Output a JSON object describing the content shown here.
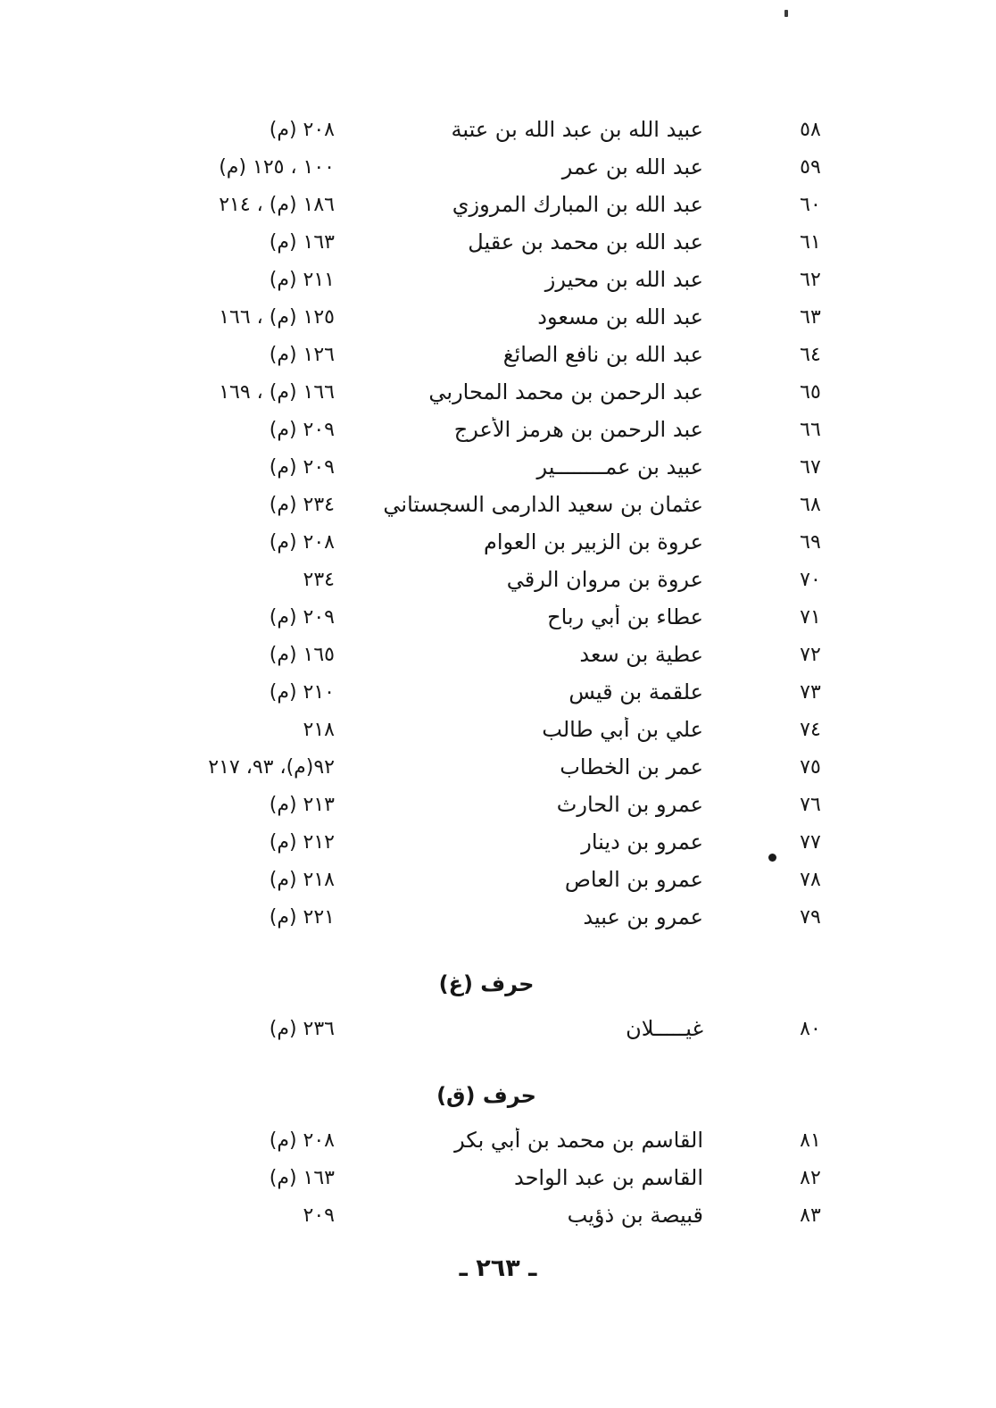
{
  "page": {
    "footer": "ـ ٢٦٣ ـ",
    "colors": {
      "ink": "#161616",
      "paper": "#ffffff"
    }
  },
  "index": {
    "sections": [
      {
        "rows": [
          {
            "num": "٥٨",
            "name": "عبيد الله بن عبد الله بن عتبة",
            "pages": "٢٠٨ (م)"
          },
          {
            "num": "٥٩",
            "name": "عبد الله بن عمر",
            "pages": "١٠٠ ، ١٢٥ (م)"
          },
          {
            "num": "٦٠",
            "name": "عبد الله بن المبارك المروزي",
            "pages": "١٨٦ (م) ، ٢١٤"
          },
          {
            "num": "٦١",
            "name": "عبد الله بن محمد بن عقيل",
            "pages": "١٦٣ (م)"
          },
          {
            "num": "٦٢",
            "name": "عبد الله بن محيرز",
            "pages": "٢١١ (م)"
          },
          {
            "num": "٦٣",
            "name": "عبد الله بن مسعود",
            "pages": "١٢٥ (م) ، ١٦٦"
          },
          {
            "num": "٦٤",
            "name": "عبد الله بن نافع الصائغ",
            "pages": "١٢٦ (م)"
          },
          {
            "num": "٦٥",
            "name": "عبد الرحمن بن محمد المحاربي",
            "pages": "١٦٦ (م) ، ١٦٩"
          },
          {
            "num": "٦٦",
            "name": "عبد الرحمن بن هرمز الأعرج",
            "pages": "٢٠٩ (م)"
          },
          {
            "num": "٦٧",
            "name": "عبيد بن عمــــــــير",
            "pages": "٢٠٩ (م)"
          },
          {
            "num": "٦٨",
            "name": "عثمان بن سعيد الدارمى السجستاني",
            "pages": "٢٣٤ (م)"
          },
          {
            "num": "٦٩",
            "name": "عروة بن الزبير بن العوام",
            "pages": "٢٠٨ (م)"
          },
          {
            "num": "٧٠",
            "name": "عروة بن مروان الرقي",
            "pages": "٢٣٤"
          },
          {
            "num": "٧١",
            "name": "عطاء بن أبي رباح",
            "pages": "٢٠٩ (م)"
          },
          {
            "num": "٧٢",
            "name": "عطية بن سعد",
            "pages": "١٦٥ (م)"
          },
          {
            "num": "٧٣",
            "name": "علقمة بن قيس",
            "pages": "٢١٠ (م)"
          },
          {
            "num": "٧٤",
            "name": "علي بن أبي طالب",
            "pages": "٢١٨"
          },
          {
            "num": "٧٥",
            "name": "عمر بن الخطاب",
            "pages": "٩٢(م)، ٩٣، ٢١٧"
          },
          {
            "num": "٧٦",
            "name": "عمرو بن الحارث",
            "pages": "٢١٣ (م)"
          },
          {
            "num": "٧٧",
            "name": "عمرو بن دينار",
            "pages": "٢١٢ (م)"
          },
          {
            "num": "٧٨",
            "name": "عمرو بن العاص",
            "pages": "٢١٨ (م)"
          },
          {
            "num": "٧٩",
            "name": "عمرو بن عبيد",
            "pages": "٢٢١ (م)"
          }
        ]
      },
      {
        "heading": "حرف (غ)",
        "rows": [
          {
            "num": "٨٠",
            "name": "غيـــــلان",
            "pages": "٢٣٦ (م)"
          }
        ]
      },
      {
        "heading": "حرف (ق)",
        "rows": [
          {
            "num": "٨١",
            "name": "القاسم بن محمد بن أبي بكر",
            "pages": "٢٠٨ (م)"
          },
          {
            "num": "٨٢",
            "name": "القاسم بن عبد الواحد",
            "pages": "١٦٣ (م)"
          },
          {
            "num": "٨٣",
            "name": "قبيصة بن ذؤيب",
            "pages": "٢٠٩"
          }
        ]
      }
    ]
  }
}
